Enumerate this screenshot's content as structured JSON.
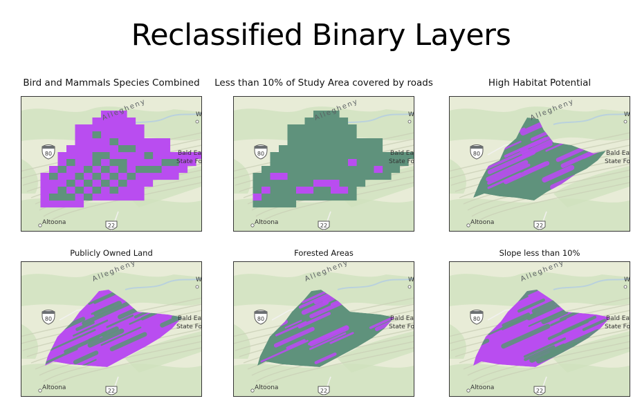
{
  "title": "Reclassified Binary Layers",
  "colors": {
    "suitable": "#b94df0",
    "unsuitable": "#5f927c",
    "basemap_land": "#e8ecd7",
    "basemap_forest": "#cfe1bd",
    "water": "#b9d1dd",
    "relief": "#c9cfb6"
  },
  "map_labels": {
    "place_city": "Altoona",
    "highway_interstate": "80",
    "highway_us": "22",
    "ridge": "Allegheny",
    "forest_line1": "Bald Eagle",
    "forest_line2": "State Forest",
    "place_edge": "W"
  },
  "panels": [
    {
      "title": "Bird and Mammals Species Combined",
      "dominant": "suitable",
      "shape": "grid"
    },
    {
      "title": "Less than 10% of Study Area covered by roads",
      "dominant": "unsuitable",
      "shape": "grid"
    },
    {
      "title": "High Habitat Potential",
      "dominant": "unsuitable",
      "shape": "polygon"
    },
    {
      "title": "Publicly Owned Land",
      "dominant": "suitable",
      "shape": "polygon"
    },
    {
      "title": "Forested Areas",
      "dominant": "unsuitable",
      "shape": "polygon"
    },
    {
      "title": "Slope less than 10%",
      "dominant": "suitable",
      "shape": "polygon"
    }
  ]
}
